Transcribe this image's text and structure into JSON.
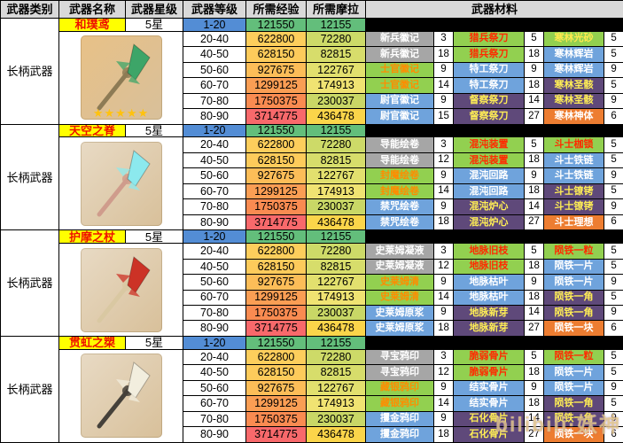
{
  "header": {
    "col_category": "武器类别",
    "col_name": "武器名称",
    "col_star": "武器星级",
    "col_level": "武器等级",
    "col_exp": "所需经验",
    "col_mora": "所需摩拉",
    "col_materials": "武器材料"
  },
  "levels": [
    "1-20",
    "20-40",
    "40-50",
    "50-60",
    "60-70",
    "70-80",
    "80-90"
  ],
  "exp": [
    "121550",
    "622800",
    "628150",
    "927675",
    "1299125",
    "1750375",
    "3714775"
  ],
  "mora": [
    "12155",
    "72280",
    "82815",
    "122767",
    "174913",
    "230037",
    "436478"
  ],
  "exp_colors": [
    "#63be7b",
    "#fdce5c",
    "#fdcb5b",
    "#fcbd58",
    "#fa9e54",
    "#f98b51",
    "#f8696b"
  ],
  "mora_colors": [
    "#63be7b",
    "#cdda68",
    "#d7dd6b",
    "#e2e06e",
    "#f0e372",
    "#c9d766",
    "#fbd54a"
  ],
  "level_first_bg": "#538dd5",
  "tiers": {
    "gray": {
      "bg": "#a6a6a6",
      "fg": "#ffffff"
    },
    "green-red": {
      "bg": "#92d050",
      "fg": "#ff2a00"
    },
    "green-orange": {
      "bg": "#92d050",
      "fg": "#ff8c00"
    },
    "green-yellow": {
      "bg": "#92d050",
      "fg": "#ffe94d"
    },
    "blue": {
      "bg": "#6fa3dc",
      "fg": "#ffffff"
    },
    "purple": {
      "bg": "#5f497a",
      "fg": "#ffee55"
    },
    "orange": {
      "bg": "#ed7d31",
      "fg": "#ffffff"
    }
  },
  "weapons": [
    {
      "category": "长柄武器",
      "name": "和璞鸢",
      "star": "5星",
      "stars": "★★★★★",
      "icon": "jade-spear-icon",
      "colors": {
        "box": "#e8c187",
        "blade": "#3da568",
        "pole": "#8d7b55"
      },
      "materials": [
        [
          {
            "n": "新兵徽记",
            "t": "gray",
            "c": "3"
          },
          {
            "n": "猎兵祭刀",
            "t": "green-red",
            "c": "5"
          },
          {
            "n": "寒林光砂",
            "t": "green-yellow",
            "c": "5"
          }
        ],
        [
          {
            "n": "新兵徽记",
            "t": "gray",
            "c": "18"
          },
          {
            "n": "猎兵祭刀",
            "t": "green-red",
            "c": "18"
          },
          {
            "n": "寒林辉岩",
            "t": "blue",
            "c": "5"
          }
        ],
        [
          {
            "n": "士官徽记",
            "t": "green-orange",
            "c": "9"
          },
          {
            "n": "特工祭刀",
            "t": "blue",
            "c": "9"
          },
          {
            "n": "寒林辉岩",
            "t": "blue",
            "c": "9"
          }
        ],
        [
          {
            "n": "士官徽记",
            "t": "green-orange",
            "c": "14"
          },
          {
            "n": "特工祭刀",
            "t": "blue",
            "c": "18"
          },
          {
            "n": "寒林圣骸",
            "t": "purple",
            "c": "5"
          }
        ],
        [
          {
            "n": "尉官徽记",
            "t": "blue",
            "c": "9"
          },
          {
            "n": "督察祭刀",
            "t": "purple",
            "c": "14"
          },
          {
            "n": "寒林圣骸",
            "t": "purple",
            "c": "9"
          }
        ],
        [
          {
            "n": "尉官徽记",
            "t": "blue",
            "c": "15"
          },
          {
            "n": "督察祭刀",
            "t": "purple",
            "c": "27"
          },
          {
            "n": "寒林神体",
            "t": "orange",
            "c": "6"
          }
        ]
      ]
    },
    {
      "category": "长柄武器",
      "name": "天空之脊",
      "star": "5星",
      "stars": "",
      "icon": "skyward-spine-icon",
      "colors": {
        "box": "#e8dac4",
        "blade": "#8ce9ee",
        "pole": "#cf9c8c"
      },
      "materials": [
        [
          {
            "n": "导能绘卷",
            "t": "gray",
            "c": "3"
          },
          {
            "n": "混沌装置",
            "t": "green-red",
            "c": "5"
          },
          {
            "n": "斗士枷锁",
            "t": "green-red",
            "c": "5"
          }
        ],
        [
          {
            "n": "导能绘卷",
            "t": "gray",
            "c": "12"
          },
          {
            "n": "混沌装置",
            "t": "green-red",
            "c": "18"
          },
          {
            "n": "斗士铁链",
            "t": "blue",
            "c": "5"
          }
        ],
        [
          {
            "n": "封魔绘卷",
            "t": "green-orange",
            "c": "9"
          },
          {
            "n": "混沌回路",
            "t": "blue",
            "c": "9"
          },
          {
            "n": "斗士铁链",
            "t": "blue",
            "c": "9"
          }
        ],
        [
          {
            "n": "封魔绘卷",
            "t": "green-orange",
            "c": "14"
          },
          {
            "n": "混沌回路",
            "t": "blue",
            "c": "18"
          },
          {
            "n": "斗士镣铐",
            "t": "purple",
            "c": "5"
          }
        ],
        [
          {
            "n": "禁咒绘卷",
            "t": "blue",
            "c": "9"
          },
          {
            "n": "混沌炉心",
            "t": "purple",
            "c": "14"
          },
          {
            "n": "斗士镣铐",
            "t": "purple",
            "c": "9"
          }
        ],
        [
          {
            "n": "禁咒绘卷",
            "t": "blue",
            "c": "18"
          },
          {
            "n": "混沌炉心",
            "t": "purple",
            "c": "27"
          },
          {
            "n": "斗士理想",
            "t": "orange",
            "c": "6"
          }
        ]
      ]
    },
    {
      "category": "长柄武器",
      "name": "护摩之杖",
      "star": "5星",
      "stars": "",
      "icon": "staff-of-homa-icon",
      "colors": {
        "box": "#e8dac4",
        "blade": "#cc3226",
        "pole": "#d9c8a2"
      },
      "materials": [
        [
          {
            "n": "史莱姆凝液",
            "t": "gray",
            "c": "3"
          },
          {
            "n": "地脉旧枝",
            "t": "green-red",
            "c": "5"
          },
          {
            "n": "陨铁一粒",
            "t": "green-red",
            "c": "5"
          }
        ],
        [
          {
            "n": "史莱姆凝液",
            "t": "gray",
            "c": "12"
          },
          {
            "n": "地脉旧枝",
            "t": "green-red",
            "c": "18"
          },
          {
            "n": "陨铁一片",
            "t": "blue",
            "c": "5"
          }
        ],
        [
          {
            "n": "史莱姆清",
            "t": "green-orange",
            "c": "9"
          },
          {
            "n": "地脉枯叶",
            "t": "blue",
            "c": "9"
          },
          {
            "n": "陨铁一片",
            "t": "blue",
            "c": "9"
          }
        ],
        [
          {
            "n": "史莱姆清",
            "t": "green-orange",
            "c": "14"
          },
          {
            "n": "地脉枯叶",
            "t": "blue",
            "c": "18"
          },
          {
            "n": "陨铁一角",
            "t": "purple",
            "c": "5"
          }
        ],
        [
          {
            "n": "史莱姆原浆",
            "t": "blue",
            "c": "9"
          },
          {
            "n": "地脉新芽",
            "t": "purple",
            "c": "14"
          },
          {
            "n": "陨铁一角",
            "t": "purple",
            "c": "9"
          }
        ],
        [
          {
            "n": "史莱姆原浆",
            "t": "blue",
            "c": "18"
          },
          {
            "n": "地脉新芽",
            "t": "purple",
            "c": "27"
          },
          {
            "n": "陨铁一块",
            "t": "orange",
            "c": "6"
          }
        ]
      ]
    },
    {
      "category": "长柄武器",
      "name": "贯虹之槊",
      "star": "5星",
      "stars": "",
      "icon": "vortex-vanquisher-icon",
      "colors": {
        "box": "#e8dac4",
        "blade": "#f2eede",
        "pole": "#45413a"
      },
      "materials": [
        [
          {
            "n": "寻宝鸦印",
            "t": "gray",
            "c": "3"
          },
          {
            "n": "脆弱骨片",
            "t": "green-red",
            "c": "5"
          },
          {
            "n": "陨铁一粒",
            "t": "green-red",
            "c": "5"
          }
        ],
        [
          {
            "n": "寻宝鸦印",
            "t": "gray",
            "c": "12"
          },
          {
            "n": "脆弱骨片",
            "t": "green-red",
            "c": "18"
          },
          {
            "n": "陨铁一片",
            "t": "blue",
            "c": "5"
          }
        ],
        [
          {
            "n": "藏银鸦印",
            "t": "green-orange",
            "c": "9"
          },
          {
            "n": "结实骨片",
            "t": "blue",
            "c": "9"
          },
          {
            "n": "陨铁一片",
            "t": "blue",
            "c": "9"
          }
        ],
        [
          {
            "n": "藏银鸦印",
            "t": "green-orange",
            "c": "14"
          },
          {
            "n": "结实骨片",
            "t": "blue",
            "c": "18"
          },
          {
            "n": "陨铁一角",
            "t": "purple",
            "c": "5"
          }
        ],
        [
          {
            "n": "攫金鸦印",
            "t": "blue",
            "c": "9"
          },
          {
            "n": "石化骨片",
            "t": "purple",
            "c": "14"
          },
          {
            "n": "陨铁一角",
            "t": "purple",
            "c": "9"
          }
        ],
        [
          {
            "n": "攫金鸦印",
            "t": "blue",
            "c": "18"
          },
          {
            "n": "石化骨片",
            "t": "purple",
            "c": "27"
          },
          {
            "n": "陨铁一块",
            "t": "orange",
            "c": "6"
          }
        ]
      ]
    }
  ],
  "watermark": {
    "text": "bilibili·妖神"
  }
}
